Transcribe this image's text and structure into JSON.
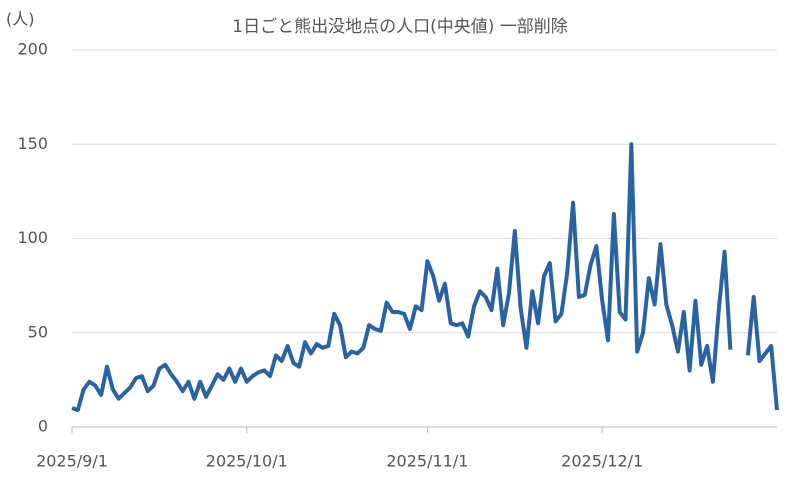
{
  "chart_data": {
    "type": "line",
    "title": "1日ごと熊出没地点の人口(中央値) 一部削除",
    "y_label": "(人)",
    "x": [
      "2025/9/1",
      "2025/9/2",
      "2025/9/3",
      "2025/9/4",
      "2025/9/5",
      "2025/9/6",
      "2025/9/7",
      "2025/9/8",
      "2025/9/9",
      "2025/9/10",
      "2025/9/11",
      "2025/9/12",
      "2025/9/13",
      "2025/9/14",
      "2025/9/15",
      "2025/9/16",
      "2025/9/17",
      "2025/9/18",
      "2025/9/19",
      "2025/9/20",
      "2025/9/21",
      "2025/9/22",
      "2025/9/23",
      "2025/9/24",
      "2025/9/25",
      "2025/9/26",
      "2025/9/27",
      "2025/9/28",
      "2025/9/29",
      "2025/9/30",
      "2025/10/1",
      "2025/10/2",
      "2025/10/3",
      "2025/10/4",
      "2025/10/5",
      "2025/10/6",
      "2025/10/7",
      "2025/10/8",
      "2025/10/9",
      "2025/10/10",
      "2025/10/11",
      "2025/10/12",
      "2025/10/13",
      "2025/10/14",
      "2025/10/15",
      "2025/10/16",
      "2025/10/17",
      "2025/10/18",
      "2025/10/19",
      "2025/10/20",
      "2025/10/21",
      "2025/10/22",
      "2025/10/23",
      "2025/10/24",
      "2025/10/25",
      "2025/10/26",
      "2025/10/27",
      "2025/10/28",
      "2025/10/29",
      "2025/10/30",
      "2025/10/31",
      "2025/11/1",
      "2025/11/2",
      "2025/11/3",
      "2025/11/4",
      "2025/11/5",
      "2025/11/6",
      "2025/11/7",
      "2025/11/8",
      "2025/11/9",
      "2025/11/10",
      "2025/11/11",
      "2025/11/12",
      "2025/11/13",
      "2025/11/14",
      "2025/11/15",
      "2025/11/16",
      "2025/11/17",
      "2025/11/18",
      "2025/11/19",
      "2025/11/20",
      "2025/11/21",
      "2025/11/22",
      "2025/11/23",
      "2025/11/24",
      "2025/11/25",
      "2025/11/26",
      "2025/11/27",
      "2025/11/28",
      "2025/11/29",
      "2025/11/30",
      "2025/12/1",
      "2025/12/2",
      "2025/12/3",
      "2025/12/4",
      "2025/12/5",
      "2025/12/6",
      "2025/12/7",
      "2025/12/8",
      "2025/12/9",
      "2025/12/10",
      "2025/12/11",
      "2025/12/12",
      "2025/12/13",
      "2025/12/14",
      "2025/12/15",
      "2025/12/16",
      "2025/12/17",
      "2025/12/18",
      "2025/12/19",
      "2025/12/20",
      "2025/12/21",
      "2025/12/22",
      "2025/12/23",
      "2025/12/24",
      "2025/12/25",
      "2025/12/26",
      "2025/12/27",
      "2025/12/28",
      "2025/12/29",
      "2025/12/30",
      "2025/12/31"
    ],
    "values": [
      10,
      9,
      20,
      24,
      22,
      17,
      32,
      20,
      15,
      18,
      21,
      26,
      27,
      19,
      22,
      31,
      33,
      28,
      24,
      19,
      24,
      15,
      24,
      16,
      22,
      28,
      25,
      31,
      24,
      31,
      24,
      27,
      29,
      30,
      27,
      38,
      35,
      43,
      34,
      32,
      45,
      39,
      44,
      42,
      43,
      60,
      54,
      37,
      40,
      39,
      42,
      54,
      52,
      51,
      66,
      61,
      61,
      60,
      52,
      64,
      62,
      88,
      80,
      67,
      76,
      55,
      54,
      55,
      48,
      64,
      72,
      69,
      62,
      84,
      54,
      71,
      104,
      63,
      42,
      72,
      55,
      80,
      87,
      56,
      60,
      82,
      119,
      69,
      70,
      86,
      96,
      67,
      46,
      113,
      61,
      57,
      150,
      40,
      50,
      79,
      65,
      97,
      65,
      54,
      40,
      61,
      30,
      67,
      33,
      43,
      24,
      62,
      93,
      41,
      null,
      null,
      38,
      69,
      35,
      39,
      43,
      9
    ],
    "color": "#2a63a3",
    "xlim": [
      "2025/9/1",
      "2025/12/31"
    ],
    "xticks": [
      "2025/9/1",
      "2025/10/1",
      "2025/11/1",
      "2025/12/1"
    ],
    "ylim": [
      0,
      200
    ],
    "yticks": [
      0,
      50,
      100,
      150,
      200
    ],
    "grid": true
  }
}
